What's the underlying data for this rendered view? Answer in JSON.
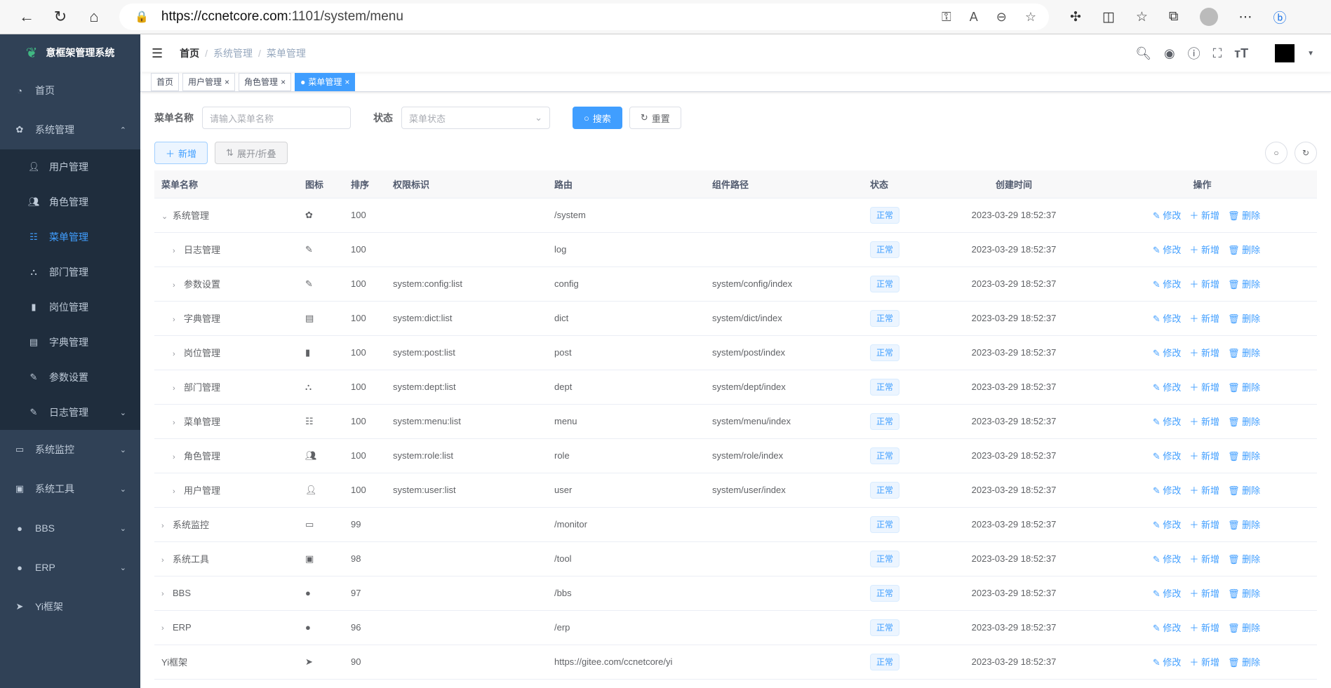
{
  "browser": {
    "url_host": "https://ccnetcore.com",
    "url_rest": ":1101/system/menu"
  },
  "sidebar": {
    "title": "意框架管理系统",
    "items": [
      {
        "label": "首页",
        "icon": "dashboard-icon",
        "level": 0
      },
      {
        "label": "系统管理",
        "icon": "gear-icon",
        "level": 0,
        "expanded": true
      },
      {
        "label": "用户管理",
        "icon": "user-icon",
        "level": 1
      },
      {
        "label": "角色管理",
        "icon": "peoples-icon",
        "level": 1
      },
      {
        "label": "菜单管理",
        "icon": "tree-table-icon",
        "level": 1,
        "active": true
      },
      {
        "label": "部门管理",
        "icon": "tree-icon",
        "level": 1
      },
      {
        "label": "岗位管理",
        "icon": "post-icon",
        "level": 1
      },
      {
        "label": "字典管理",
        "icon": "dict-icon",
        "level": 1
      },
      {
        "label": "参数设置",
        "icon": "edit-icon",
        "level": 1
      },
      {
        "label": "日志管理",
        "icon": "log-icon",
        "level": 1,
        "has_children": true
      },
      {
        "label": "系统监控",
        "icon": "monitor-icon",
        "level": 0,
        "has_children": true
      },
      {
        "label": "系统工具",
        "icon": "tool-icon",
        "level": 0,
        "has_children": true
      },
      {
        "label": "BBS",
        "icon": "globe-icon",
        "level": 0,
        "has_children": true
      },
      {
        "label": "ERP",
        "icon": "globe-icon",
        "level": 0,
        "has_children": true
      },
      {
        "label": "Yi框架",
        "icon": "send-icon",
        "level": 0
      }
    ]
  },
  "breadcrumb": [
    "首页",
    "系统管理",
    "菜单管理"
  ],
  "tags": [
    {
      "label": "首页"
    },
    {
      "label": "用户管理",
      "closable": true
    },
    {
      "label": "角色管理",
      "closable": true
    },
    {
      "label": "菜单管理",
      "closable": true,
      "active": true
    }
  ],
  "search": {
    "name_label": "菜单名称",
    "name_placeholder": "请输入菜单名称",
    "status_label": "状态",
    "status_placeholder": "菜单状态",
    "search_btn": "搜索",
    "reset_btn": "重置"
  },
  "toolbar": {
    "add": "新增",
    "toggle": "展开/折叠"
  },
  "table": {
    "headers": [
      "菜单名称",
      "图标",
      "排序",
      "权限标识",
      "路由",
      "组件路径",
      "状态",
      "创建时间",
      "操作"
    ],
    "actions": {
      "edit": "修改",
      "add": "新增",
      "delete": "删除"
    },
    "rows": [
      {
        "name": "系统管理",
        "level": 0,
        "expand": "open",
        "icon": "gear-icon",
        "order": "100",
        "perm": "",
        "route": "/system",
        "component": "",
        "status": "正常",
        "time": "2023-03-29 18:52:37"
      },
      {
        "name": "日志管理",
        "level": 1,
        "expand": "closed",
        "icon": "log-icon",
        "order": "100",
        "perm": "",
        "route": "log",
        "component": "",
        "status": "正常",
        "time": "2023-03-29 18:52:37"
      },
      {
        "name": "参数设置",
        "level": 1,
        "expand": "closed",
        "icon": "edit-icon",
        "order": "100",
        "perm": "system:config:list",
        "route": "config",
        "component": "system/config/index",
        "status": "正常",
        "time": "2023-03-29 18:52:37"
      },
      {
        "name": "字典管理",
        "level": 1,
        "expand": "closed",
        "icon": "dict-icon",
        "order": "100",
        "perm": "system:dict:list",
        "route": "dict",
        "component": "system/dict/index",
        "status": "正常",
        "time": "2023-03-29 18:52:37"
      },
      {
        "name": "岗位管理",
        "level": 1,
        "expand": "closed",
        "icon": "post-icon",
        "order": "100",
        "perm": "system:post:list",
        "route": "post",
        "component": "system/post/index",
        "status": "正常",
        "time": "2023-03-29 18:52:37"
      },
      {
        "name": "部门管理",
        "level": 1,
        "expand": "closed",
        "icon": "tree-icon",
        "order": "100",
        "perm": "system:dept:list",
        "route": "dept",
        "component": "system/dept/index",
        "status": "正常",
        "time": "2023-03-29 18:52:37"
      },
      {
        "name": "菜单管理",
        "level": 1,
        "expand": "closed",
        "icon": "tree-table-icon",
        "order": "100",
        "perm": "system:menu:list",
        "route": "menu",
        "component": "system/menu/index",
        "status": "正常",
        "time": "2023-03-29 18:52:37"
      },
      {
        "name": "角色管理",
        "level": 1,
        "expand": "closed",
        "icon": "peoples-icon",
        "order": "100",
        "perm": "system:role:list",
        "route": "role",
        "component": "system/role/index",
        "status": "正常",
        "time": "2023-03-29 18:52:37"
      },
      {
        "name": "用户管理",
        "level": 1,
        "expand": "closed",
        "icon": "user-icon",
        "order": "100",
        "perm": "system:user:list",
        "route": "user",
        "component": "system/user/index",
        "status": "正常",
        "time": "2023-03-29 18:52:37"
      },
      {
        "name": "系统监控",
        "level": 0,
        "expand": "closed",
        "icon": "monitor-icon",
        "order": "99",
        "perm": "",
        "route": "/monitor",
        "component": "",
        "status": "正常",
        "time": "2023-03-29 18:52:37"
      },
      {
        "name": "系统工具",
        "level": 0,
        "expand": "closed",
        "icon": "tool-icon",
        "order": "98",
        "perm": "",
        "route": "/tool",
        "component": "",
        "status": "正常",
        "time": "2023-03-29 18:52:37"
      },
      {
        "name": "BBS",
        "level": 0,
        "expand": "closed",
        "icon": "globe-icon",
        "order": "97",
        "perm": "",
        "route": "/bbs",
        "component": "",
        "status": "正常",
        "time": "2023-03-29 18:52:37"
      },
      {
        "name": "ERP",
        "level": 0,
        "expand": "closed",
        "icon": "globe-icon",
        "order": "96",
        "perm": "",
        "route": "/erp",
        "component": "",
        "status": "正常",
        "time": "2023-03-29 18:52:37"
      },
      {
        "name": "Yi框架",
        "level": 0,
        "expand": "none",
        "icon": "send-icon",
        "order": "90",
        "perm": "",
        "route": "https://gitee.com/ccnetcore/yi",
        "component": "",
        "status": "正常",
        "time": "2023-03-29 18:52:37"
      }
    ]
  },
  "colors": {
    "primary": "#409eff",
    "sidebar": "#304156",
    "submenu": "#1f2d3d"
  }
}
